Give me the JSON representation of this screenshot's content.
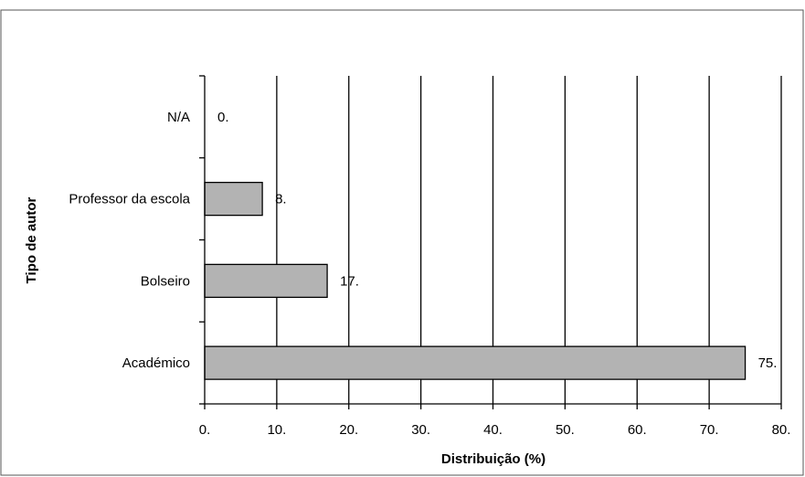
{
  "chart_data": {
    "type": "bar",
    "orientation": "horizontal",
    "categories": [
      "N/A",
      "Professor da escola",
      "Bolseiro",
      "Académico"
    ],
    "values": [
      0,
      8,
      17,
      75
    ],
    "value_labels": [
      "0.",
      "8.",
      "17.",
      "75."
    ],
    "xlabel": "Distribuição (%)",
    "ylabel": "Tipo de autor",
    "xlim": [
      0,
      80
    ],
    "x_ticks": [
      0,
      10,
      20,
      30,
      40,
      50,
      60,
      70,
      80
    ],
    "x_tick_labels": [
      "0.",
      "10.",
      "20.",
      "30.",
      "40.",
      "50.",
      "60.",
      "70.",
      "80."
    ],
    "grid": "vertical",
    "legend": "none",
    "colors": {
      "bar_fill": "#b3b3b3",
      "bar_stroke": "#000000",
      "grid": "#000000",
      "frame": "#555555"
    }
  }
}
